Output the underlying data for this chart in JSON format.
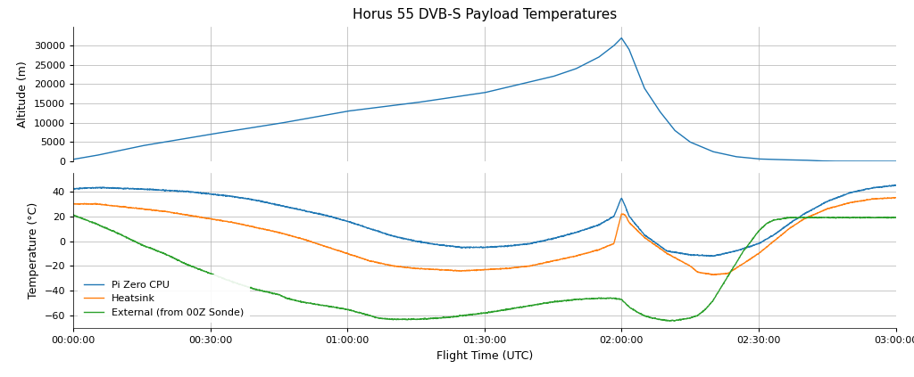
{
  "title": "Horus 55 DVB-S Payload Temperatures",
  "xlabel": "Flight Time (UTC)",
  "ylabel_top": "Altitude (m)",
  "ylabel_bottom": "Temperature (°C)",
  "x_ticks": [
    "00:00:00",
    "00:30:00",
    "01:00:00",
    "01:30:00",
    "02:00:00",
    "02:30:00",
    "03:00:00"
  ],
  "x_ticks_seconds": [
    0,
    1800,
    3600,
    5400,
    7200,
    9000,
    10800
  ],
  "legend_labels": [
    "Pi Zero CPU",
    "Heatsink",
    "External (from 00Z Sonde)"
  ],
  "line_colors": [
    "#1f77b4",
    "#ff7f0e",
    "#2ca02c"
  ],
  "altitude_color": "#1f77b4",
  "alt_ylim": [
    0,
    35000
  ],
  "alt_yticks": [
    0,
    5000,
    10000,
    15000,
    20000,
    25000,
    30000
  ],
  "temp_ylim": [
    -70,
    55
  ],
  "temp_yticks": [
    -60,
    -40,
    -20,
    0,
    20,
    40
  ],
  "background_color": "#ffffff",
  "grid_color": "#b0b0b0",
  "total_seconds": 10800,
  "figsize": [
    10.24,
    4.23
  ],
  "dpi": 100
}
